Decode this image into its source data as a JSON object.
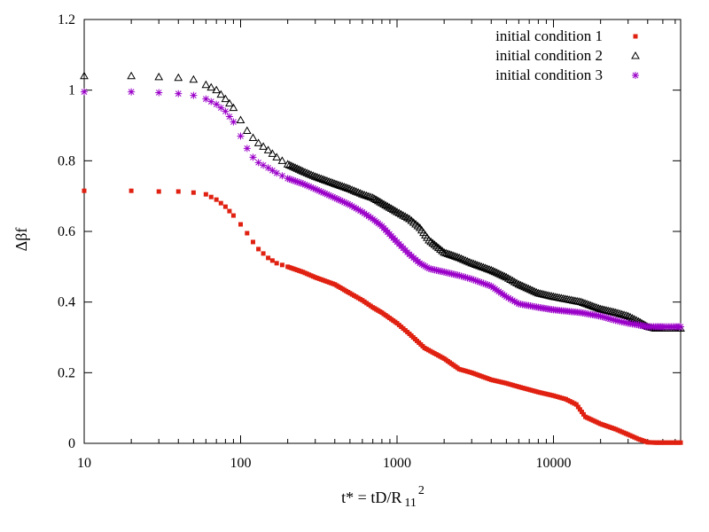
{
  "chart_data": {
    "type": "scatter",
    "title": "",
    "xlabel": "t* = tD/R",
    "xlabel_sub": "11",
    "xlabel_sup": "2",
    "ylabel": "Δβf",
    "xscale": "log",
    "xlim": [
      10,
      65000
    ],
    "ylim": [
      0,
      1.2
    ],
    "xticks": [
      10,
      100,
      1000,
      10000
    ],
    "xtick_labels": [
      "10",
      "100",
      "1000",
      "10000"
    ],
    "yticks": [
      0,
      0.2,
      0.4,
      0.6,
      0.8,
      1.0,
      1.2
    ],
    "ytick_labels": [
      "0",
      "0.2",
      "0.4",
      "0.6",
      "0.8",
      "1",
      "1.2"
    ],
    "grid": false,
    "legend_position": "top-right",
    "series": [
      {
        "name": "initial condition 1",
        "marker": "filled-square",
        "color": "#e02010",
        "x": [
          10,
          20,
          30,
          40,
          50,
          60,
          70,
          80,
          90,
          100,
          110,
          120,
          130,
          150,
          170,
          200,
          250,
          300,
          400,
          500,
          600,
          700,
          800,
          1000,
          1200,
          1500,
          2000,
          2500,
          3000,
          4000,
          5000,
          6000,
          8000,
          10000,
          12000,
          14000,
          16000,
          20000,
          25000,
          30000,
          35000,
          40000,
          45000,
          50000,
          60000,
          65000
        ],
        "values": [
          0.715,
          0.715,
          0.713,
          0.713,
          0.71,
          0.705,
          0.69,
          0.67,
          0.645,
          0.62,
          0.595,
          0.57,
          0.55,
          0.525,
          0.51,
          0.5,
          0.485,
          0.47,
          0.45,
          0.425,
          0.405,
          0.385,
          0.37,
          0.34,
          0.31,
          0.27,
          0.24,
          0.21,
          0.2,
          0.18,
          0.17,
          0.16,
          0.145,
          0.135,
          0.125,
          0.11,
          0.075,
          0.055,
          0.04,
          0.025,
          0.012,
          0.003,
          0.002,
          0.002,
          0.002,
          0.002
        ]
      },
      {
        "name": "initial condition 2",
        "marker": "open-triangle",
        "color": "#000000",
        "x": [
          10,
          20,
          30,
          40,
          50,
          60,
          70,
          80,
          90,
          100,
          110,
          120,
          130,
          150,
          170,
          200,
          250,
          300,
          400,
          500,
          600,
          700,
          800,
          1000,
          1200,
          1400,
          1600,
          2000,
          2500,
          3000,
          4000,
          5000,
          6000,
          8000,
          10000,
          15000,
          20000,
          25000,
          30000,
          35000,
          40000,
          45000,
          50000,
          60000,
          65000
        ],
        "values": [
          1.04,
          1.04,
          1.037,
          1.035,
          1.03,
          1.015,
          1.0,
          0.975,
          0.95,
          0.915,
          0.885,
          0.865,
          0.85,
          0.83,
          0.81,
          0.79,
          0.77,
          0.755,
          0.735,
          0.72,
          0.705,
          0.695,
          0.68,
          0.655,
          0.635,
          0.61,
          0.575,
          0.54,
          0.525,
          0.51,
          0.49,
          0.47,
          0.45,
          0.425,
          0.415,
          0.4,
          0.38,
          0.37,
          0.36,
          0.345,
          0.33,
          0.325,
          0.325,
          0.325,
          0.325
        ]
      },
      {
        "name": "initial condition 3",
        "marker": "star",
        "color": "#9a00c8",
        "x": [
          10,
          20,
          30,
          40,
          50,
          60,
          70,
          80,
          90,
          100,
          110,
          120,
          130,
          150,
          170,
          200,
          250,
          300,
          400,
          500,
          600,
          700,
          800,
          1000,
          1200,
          1400,
          1600,
          2000,
          2500,
          3000,
          4000,
          5000,
          6000,
          8000,
          10000,
          15000,
          20000,
          25000,
          30000,
          35000,
          40000,
          45000,
          50000,
          60000,
          65000
        ],
        "values": [
          0.995,
          0.995,
          0.993,
          0.99,
          0.985,
          0.975,
          0.96,
          0.94,
          0.91,
          0.87,
          0.835,
          0.81,
          0.795,
          0.78,
          0.765,
          0.75,
          0.735,
          0.72,
          0.695,
          0.675,
          0.655,
          0.635,
          0.615,
          0.57,
          0.535,
          0.51,
          0.495,
          0.485,
          0.475,
          0.465,
          0.445,
          0.415,
          0.395,
          0.385,
          0.378,
          0.37,
          0.36,
          0.348,
          0.34,
          0.335,
          0.33,
          0.33,
          0.33,
          0.33,
          0.33
        ]
      }
    ]
  }
}
